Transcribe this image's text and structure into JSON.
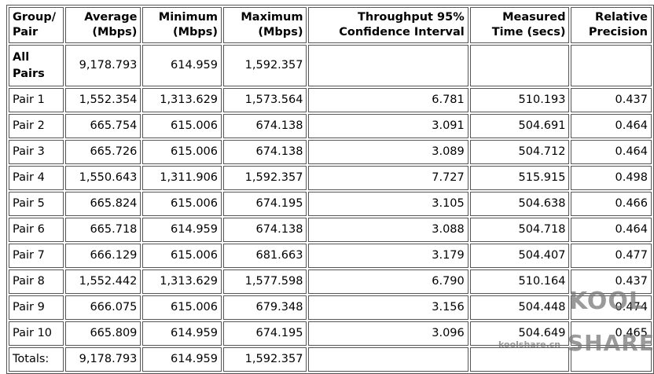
{
  "table": {
    "header": [
      "Group/ Pair",
      "Average (Mbps)",
      "Minimum (Mbps)",
      "Maximum (Mbps)",
      "Throughput 95% Confidence Interval",
      "Measured Time (secs)",
      "Relative Precision"
    ],
    "rows": [
      [
        "All Pairs",
        "9,178.793",
        "614.959",
        "1,592.357"
      ],
      [
        "Pair 1",
        "1,552.354",
        "1,313.629",
        "1,573.564",
        "6.781",
        "510.193",
        "0.437"
      ],
      [
        "Pair 2",
        "665.754",
        "615.006",
        "674.138",
        "3.091",
        "504.691",
        "0.464"
      ],
      [
        "Pair 3",
        "665.726",
        "615.006",
        "674.138",
        "3.089",
        "504.712",
        "0.464"
      ],
      [
        "Pair 4",
        "1,550.643",
        "1,311.906",
        "1,592.357",
        "7.727",
        "515.915",
        "0.498"
      ],
      [
        "Pair 5",
        "665.824",
        "615.006",
        "674.195",
        "3.105",
        "504.638",
        "0.466"
      ],
      [
        "Pair 6",
        "665.718",
        "614.959",
        "674.138",
        "3.088",
        "504.718",
        "0.464"
      ],
      [
        "Pair 7",
        "666.129",
        "615.006",
        "681.663",
        "3.179",
        "504.407",
        "0.477"
      ],
      [
        "Pair 8",
        "1,552.442",
        "1,313.629",
        "1,577.598",
        "6.790",
        "510.164",
        "0.437"
      ],
      [
        "Pair 9",
        "666.075",
        "615.006",
        "679.348",
        "3.156",
        "504.448",
        "0.474"
      ],
      [
        "Pair 10",
        "665.809",
        "614.959",
        "674.195",
        "3.096",
        "504.649",
        "0.465"
      ],
      [
        "Totals:",
        "9,178.793",
        "614.959",
        "1,592.357"
      ]
    ]
  },
  "watermark": {
    "site": "koolshare.cn",
    "logo_top": "KOOL",
    "logo_bottom": "SHARE"
  }
}
